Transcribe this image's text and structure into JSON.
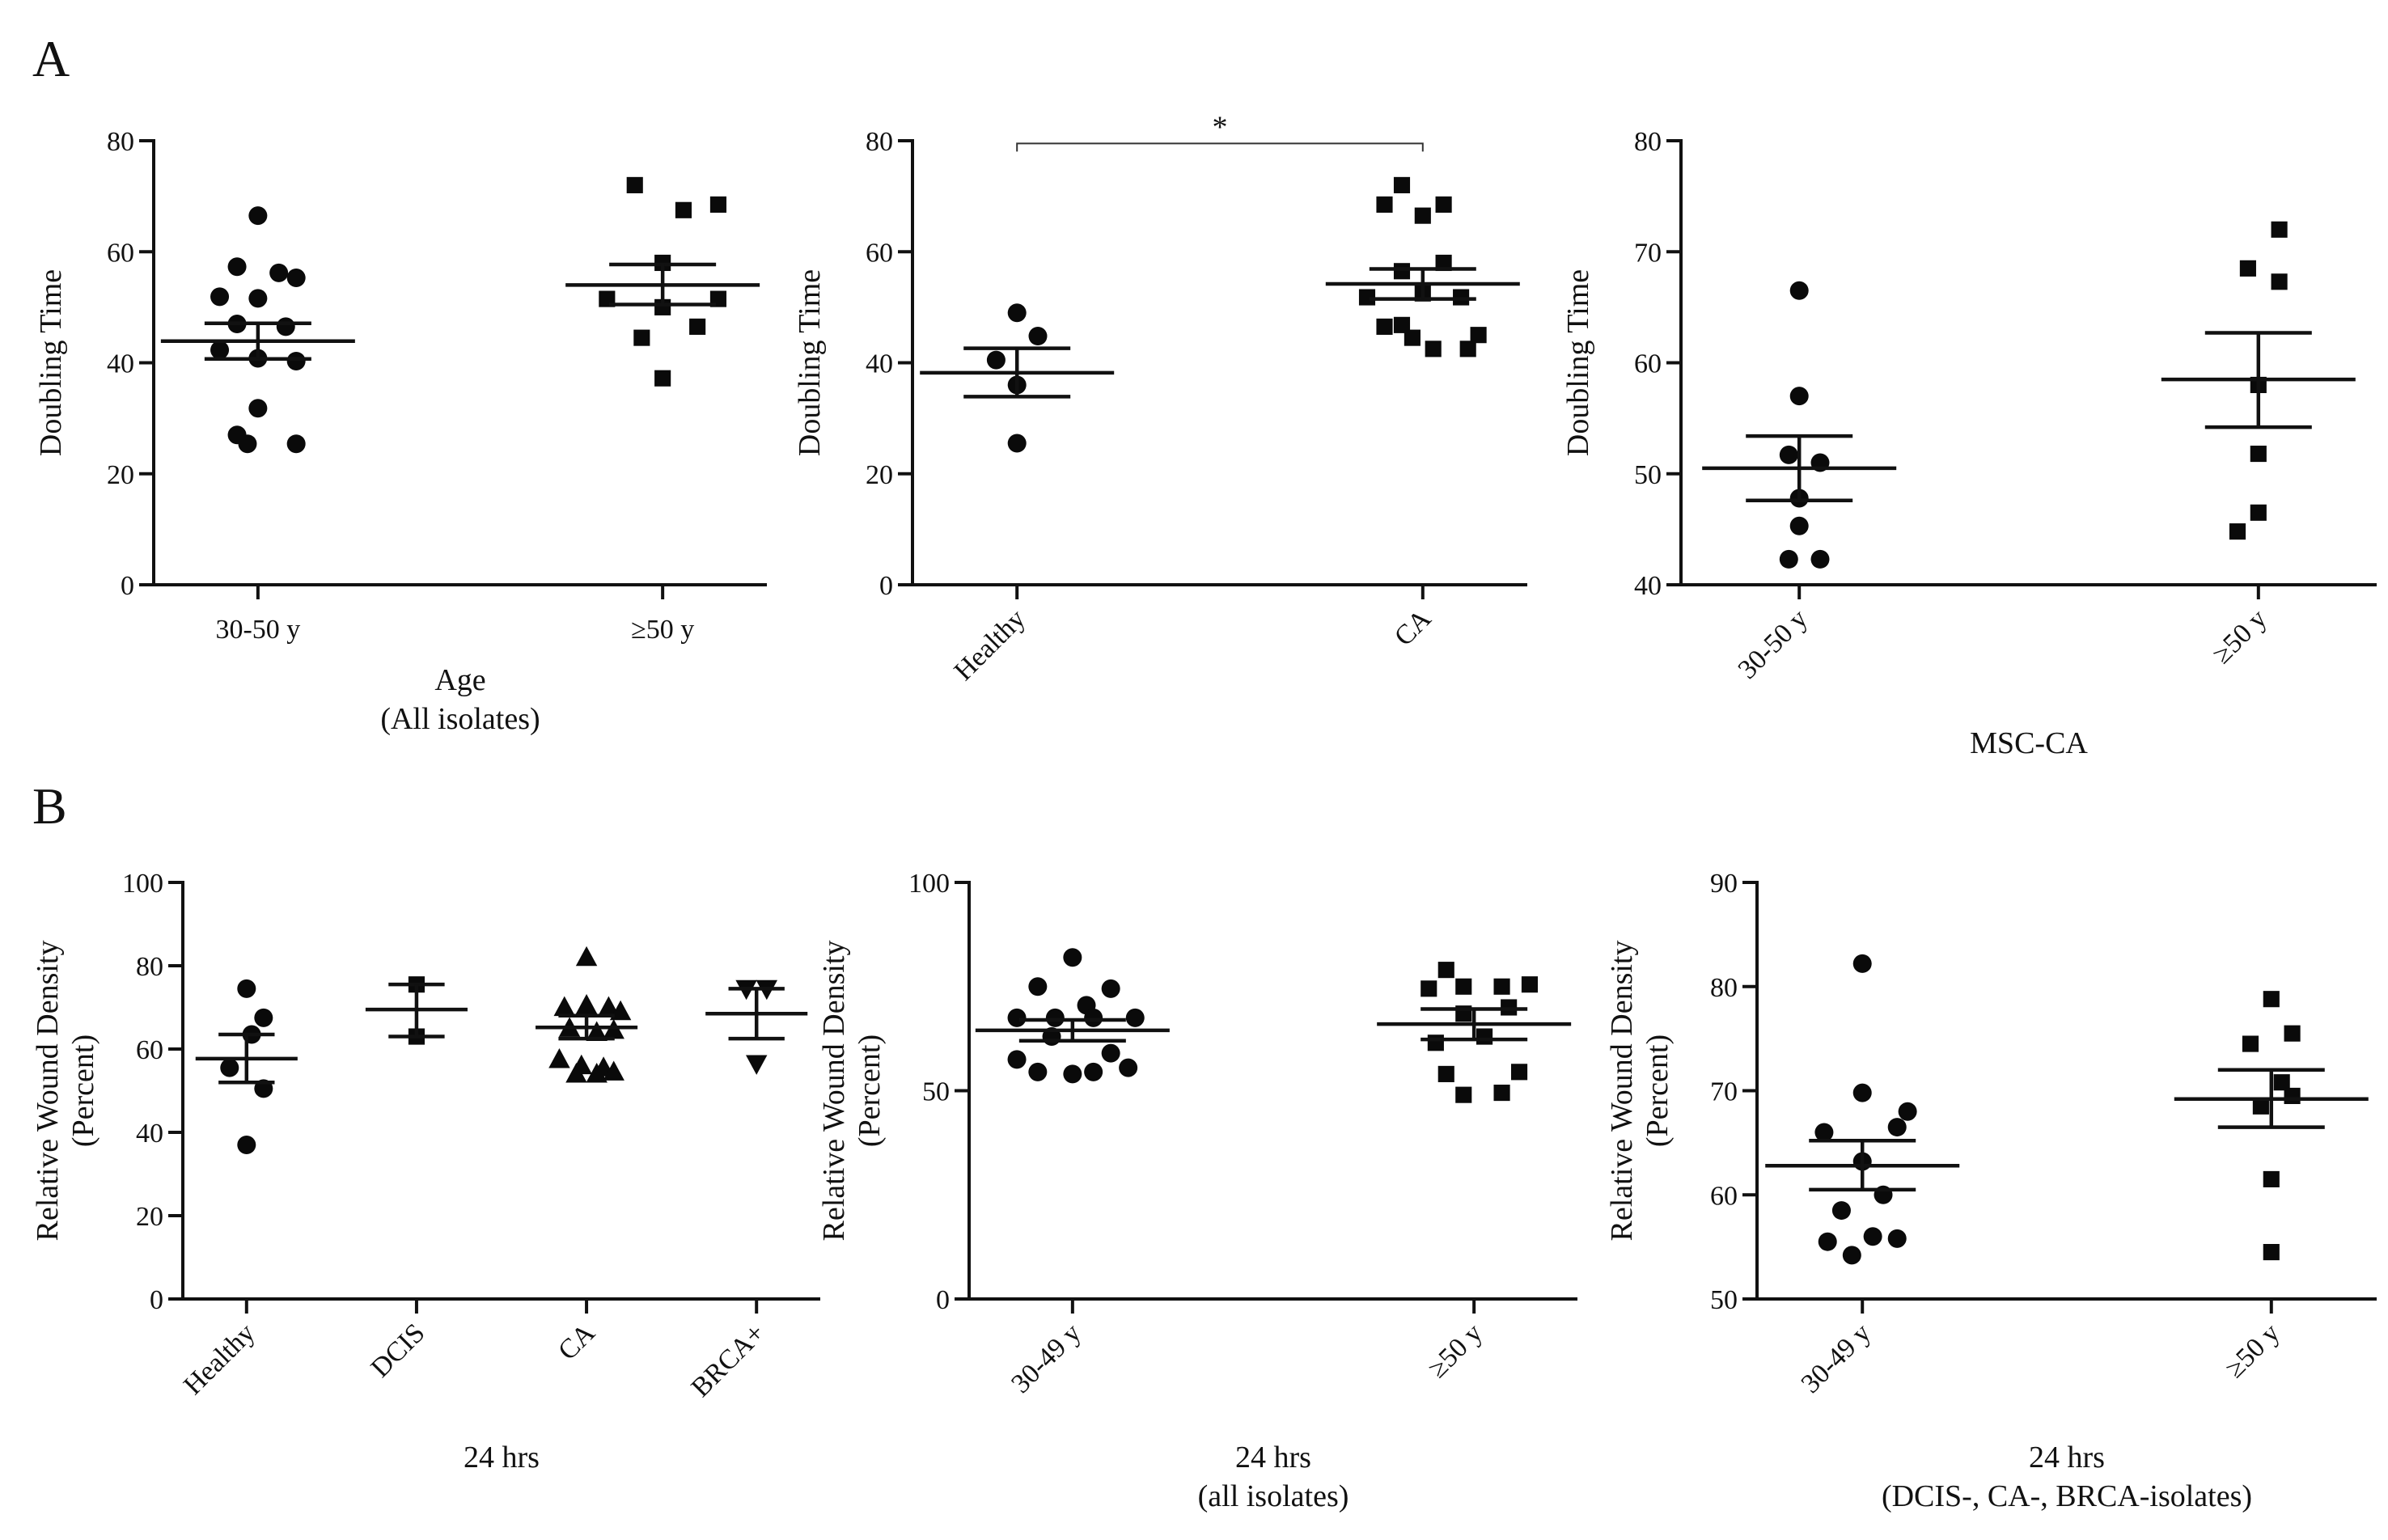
{
  "panels": [
    "A",
    "B"
  ],
  "chart_data": [
    {
      "type": "scatter",
      "panel": "A",
      "ylabel": [
        "Doubling Time"
      ],
      "xlabel": [
        "Age",
        "(All isolates)"
      ],
      "ylim": [
        0,
        80
      ],
      "yticks": [
        0,
        20,
        40,
        60,
        80
      ],
      "rotate_xticks": false,
      "significance": null,
      "groups": [
        {
          "label": "30-50 y",
          "marker": "circle",
          "mean": 43.9,
          "sem_low": 40.7,
          "sem_high": 47.1,
          "points": [
            [
              0,
              66.5
            ],
            [
              -0.06,
              57.3
            ],
            [
              0.06,
              56.2
            ],
            [
              -0.11,
              51.9
            ],
            [
              0.0,
              51.6
            ],
            [
              0.11,
              55.3
            ],
            [
              -0.06,
              47.0
            ],
            [
              0.08,
              46.5
            ],
            [
              -0.11,
              42.3
            ],
            [
              0.0,
              40.8
            ],
            [
              0.11,
              40.3
            ],
            [
              0.0,
              31.8
            ],
            [
              -0.06,
              27.0
            ],
            [
              -0.03,
              25.4
            ],
            [
              0.11,
              25.4
            ]
          ]
        },
        {
          "label": "≥50 y",
          "marker": "square",
          "mean": 54.0,
          "sem_low": 50.5,
          "sem_high": 57.7,
          "points": [
            [
              -0.08,
              72.0
            ],
            [
              0.06,
              67.5
            ],
            [
              0.16,
              68.5
            ],
            [
              0.0,
              58.0
            ],
            [
              -0.16,
              51.5
            ],
            [
              0.16,
              51.5
            ],
            [
              0.0,
              50.0
            ],
            [
              -0.06,
              44.5
            ],
            [
              0.1,
              46.5
            ],
            [
              0.0,
              37.2
            ]
          ]
        }
      ]
    },
    {
      "type": "scatter",
      "panel": "A",
      "ylabel": [
        "Doubling Time"
      ],
      "xlabel": [],
      "ylim": [
        0,
        80
      ],
      "yticks": [
        0,
        20,
        40,
        60,
        80
      ],
      "rotate_xticks": true,
      "significance": {
        "label": "*",
        "from": 0,
        "to": 1,
        "y": 79.5
      },
      "groups": [
        {
          "label": "Healthy",
          "marker": "circle",
          "mean": 38.2,
          "sem_low": 33.9,
          "sem_high": 42.6,
          "points": [
            [
              0.0,
              49.0
            ],
            [
              0.06,
              44.8
            ],
            [
              -0.06,
              40.5
            ],
            [
              0.0,
              36.0
            ],
            [
              0.0,
              25.5
            ]
          ]
        },
        {
          "label": "CA",
          "marker": "square",
          "mean": 54.2,
          "sem_low": 51.5,
          "sem_high": 56.9,
          "points": [
            [
              -0.06,
              72.0
            ],
            [
              -0.11,
              68.5
            ],
            [
              0.06,
              68.5
            ],
            [
              0.0,
              66.5
            ],
            [
              0.06,
              58.0
            ],
            [
              -0.06,
              56.5
            ],
            [
              0.0,
              52.5
            ],
            [
              0.11,
              51.8
            ],
            [
              -0.16,
              51.8
            ],
            [
              -0.11,
              46.5
            ],
            [
              0.16,
              45.0
            ],
            [
              -0.03,
              44.5
            ],
            [
              0.03,
              42.5
            ],
            [
              0.13,
              42.5
            ],
            [
              -0.06,
              46.8
            ]
          ]
        }
      ]
    },
    {
      "type": "scatter",
      "panel": "A",
      "ylabel": [
        "Doubling Time"
      ],
      "xlabel": [
        "MSC-CA"
      ],
      "ylim": [
        40,
        80
      ],
      "yticks": [
        40,
        50,
        60,
        70,
        80
      ],
      "rotate_xticks": true,
      "significance": null,
      "groups": [
        {
          "label": "30-50 y",
          "marker": "circle",
          "mean": 50.5,
          "sem_low": 47.6,
          "sem_high": 53.4,
          "points": [
            [
              0.0,
              66.5
            ],
            [
              0.0,
              57.0
            ],
            [
              -0.03,
              51.7
            ],
            [
              0.06,
              51.0
            ],
            [
              0.0,
              47.8
            ],
            [
              0.0,
              45.3
            ],
            [
              -0.03,
              42.3
            ],
            [
              0.06,
              42.3
            ]
          ]
        },
        {
          "label": "≥50 y",
          "marker": "square",
          "mean": 58.5,
          "sem_low": 54.2,
          "sem_high": 62.7,
          "points": [
            [
              0.06,
              72.0
            ],
            [
              -0.03,
              68.5
            ],
            [
              0.06,
              67.3
            ],
            [
              0.0,
              58.0
            ],
            [
              0.0,
              51.8
            ],
            [
              0.0,
              46.5
            ],
            [
              -0.06,
              44.8
            ]
          ]
        }
      ]
    },
    {
      "type": "scatter",
      "panel": "B",
      "ylabel": [
        "Relative Wound Density",
        "(Percent)"
      ],
      "xlabel": [
        "24 hrs"
      ],
      "ylim": [
        0,
        100
      ],
      "yticks": [
        0,
        20,
        40,
        60,
        80,
        100
      ],
      "rotate_xticks": true,
      "significance": null,
      "groups": [
        {
          "label": "Healthy",
          "marker": "circle",
          "mean": 57.7,
          "sem_low": 52.0,
          "sem_high": 63.5,
          "points": [
            [
              0.0,
              74.5
            ],
            [
              0.1,
              67.5
            ],
            [
              0.03,
              63.5
            ],
            [
              -0.1,
              55.5
            ],
            [
              0.1,
              50.5
            ],
            [
              0.0,
              37.0
            ]
          ]
        },
        {
          "label": "DCIS",
          "marker": "square",
          "mean": 69.5,
          "sem_low": 63.0,
          "sem_high": 75.5,
          "points": [
            [
              0.0,
              75.5
            ],
            [
              0.0,
              63.0
            ]
          ]
        },
        {
          "label": "CA",
          "marker": "triangle-up",
          "mean": 65.2,
          "sem_low": 62.5,
          "sem_high": 68.0,
          "points": [
            [
              0.0,
              82.0
            ],
            [
              -0.13,
              70.0
            ],
            [
              0.0,
              70.5
            ],
            [
              0.13,
              70.0
            ],
            [
              0.2,
              69.0
            ],
            [
              -0.1,
              65.0
            ],
            [
              0.06,
              64.0
            ],
            [
              0.16,
              64.5
            ],
            [
              -0.16,
              57.5
            ],
            [
              -0.03,
              56.0
            ],
            [
              0.1,
              55.5
            ],
            [
              -0.06,
              54.0
            ],
            [
              0.06,
              54.0
            ],
            [
              0.16,
              54.5
            ]
          ]
        },
        {
          "label": "BRCA+",
          "marker": "triangle-down",
          "mean": 68.5,
          "sem_low": 62.5,
          "sem_high": 74.5,
          "points": [
            [
              -0.06,
              74.5
            ],
            [
              0.06,
              74.5
            ],
            [
              0.0,
              56.5
            ]
          ]
        }
      ]
    },
    {
      "type": "scatter",
      "panel": "B",
      "ylabel": [
        "Relative Wound Density",
        "(Percent)"
      ],
      "xlabel": [
        "24 hrs",
        "(all isolates)"
      ],
      "ylim": [
        0,
        100
      ],
      "yticks": [
        0,
        50,
        100
      ],
      "rotate_xticks": true,
      "significance": null,
      "groups": [
        {
          "label": "30-49 y",
          "marker": "circle",
          "mean": 64.5,
          "sem_low": 62.0,
          "sem_high": 67.0,
          "points": [
            [
              0.0,
              82.0
            ],
            [
              -0.1,
              75.0
            ],
            [
              0.11,
              74.5
            ],
            [
              0.04,
              70.5
            ],
            [
              -0.16,
              67.5
            ],
            [
              -0.05,
              67.5
            ],
            [
              0.06,
              67.5
            ],
            [
              0.18,
              67.5
            ],
            [
              -0.06,
              63.0
            ],
            [
              0.11,
              59.0
            ],
            [
              -0.16,
              57.5
            ],
            [
              -0.1,
              54.5
            ],
            [
              0.0,
              54.0
            ],
            [
              0.06,
              54.5
            ],
            [
              0.16,
              55.5
            ]
          ]
        },
        {
          "label": "≥50 y",
          "marker": "square",
          "mean": 66.0,
          "sem_low": 62.3,
          "sem_high": 69.6,
          "points": [
            [
              -0.08,
              79.0
            ],
            [
              0.16,
              75.5
            ],
            [
              -0.03,
              75.0
            ],
            [
              0.08,
              75.0
            ],
            [
              -0.13,
              74.5
            ],
            [
              -0.03,
              68.5
            ],
            [
              0.1,
              70.0
            ],
            [
              0.03,
              63.0
            ],
            [
              -0.11,
              61.5
            ],
            [
              -0.08,
              54.0
            ],
            [
              0.13,
              54.5
            ],
            [
              -0.03,
              49.0
            ],
            [
              0.08,
              49.5
            ]
          ]
        }
      ]
    },
    {
      "type": "scatter",
      "panel": "B",
      "ylabel": [
        "Relative Wound Density",
        "(Percent)"
      ],
      "xlabel": [
        "24 hrs",
        "(DCIS-, CA-, BRCA-isolates)"
      ],
      "ylim": [
        50,
        90
      ],
      "yticks": [
        50,
        60,
        70,
        80,
        90
      ],
      "rotate_xticks": true,
      "significance": null,
      "groups": [
        {
          "label": "30-49 y",
          "marker": "circle",
          "mean": 62.8,
          "sem_low": 60.5,
          "sem_high": 65.2,
          "points": [
            [
              0.0,
              82.2
            ],
            [
              0.0,
              69.8
            ],
            [
              0.13,
              68.0
            ],
            [
              -0.11,
              66.0
            ],
            [
              0.1,
              66.5
            ],
            [
              0.0,
              63.2
            ],
            [
              0.06,
              60.0
            ],
            [
              -0.06,
              58.5
            ],
            [
              -0.1,
              55.5
            ],
            [
              0.1,
              55.8
            ],
            [
              -0.03,
              54.2
            ],
            [
              0.03,
              56.0
            ]
          ]
        },
        {
          "label": "≥50 y",
          "marker": "square",
          "mean": 69.2,
          "sem_low": 66.5,
          "sem_high": 72.0,
          "points": [
            [
              0.0,
              78.8
            ],
            [
              0.06,
              75.5
            ],
            [
              -0.06,
              74.5
            ],
            [
              0.03,
              70.8
            ],
            [
              0.06,
              69.5
            ],
            [
              -0.03,
              68.5
            ],
            [
              0.0,
              61.5
            ],
            [
              0.0,
              54.5
            ]
          ]
        }
      ]
    }
  ]
}
